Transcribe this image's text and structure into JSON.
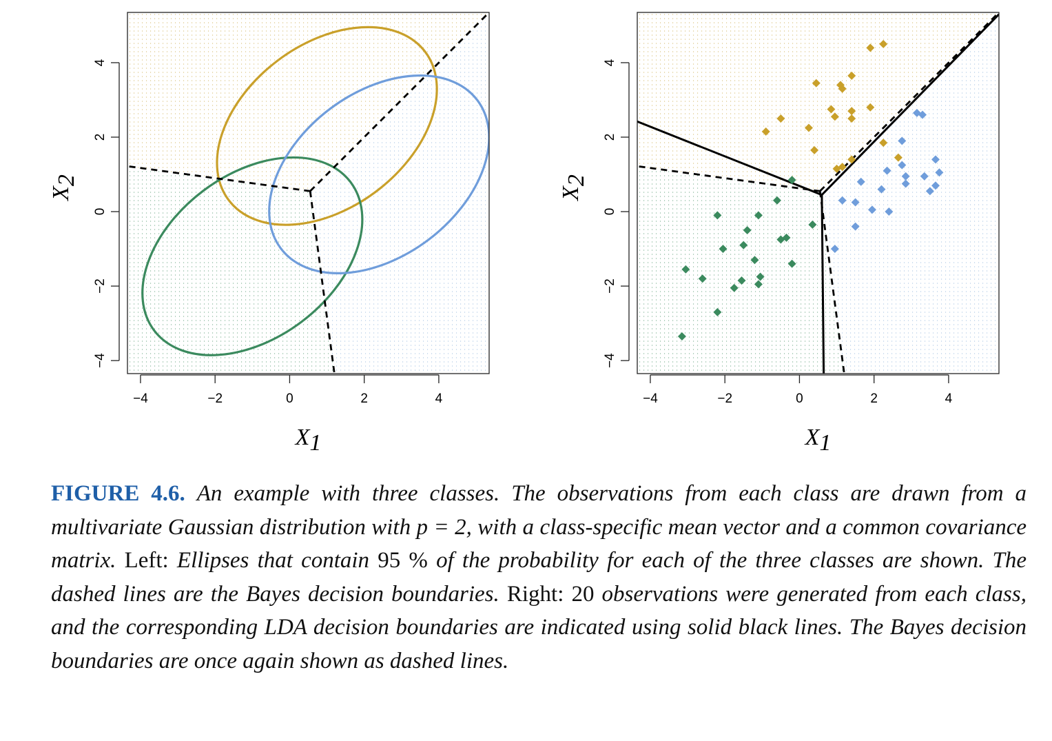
{
  "colors": {
    "class1": "#c9a02a",
    "class2": "#3b8a5e",
    "class3": "#6f9ddb",
    "region1_dots": "#d2b55f",
    "region2_dots": "#63a07d",
    "region3_dots": "#9dbedf",
    "boundary": "#000000"
  },
  "chart_data": [
    {
      "panel": "Left",
      "type": "scatter",
      "xlabel": "X",
      "xlabel_sub": "1",
      "ylabel": "X",
      "ylabel_sub": "2",
      "xlim": [
        -4.35,
        5.35
      ],
      "ylim": [
        -4.35,
        5.35
      ],
      "xticks": [
        -4,
        -2,
        0,
        2,
        4
      ],
      "yticks": [
        -4,
        -2,
        0,
        2,
        4
      ],
      "xtick_labels": [
        "−4",
        "−2",
        "0",
        "2",
        "4"
      ],
      "ytick_labels": [
        "−4",
        "−2",
        "0",
        "2",
        "4"
      ],
      "grid": false,
      "background": "dotted class regions",
      "ellipses": [
        {
          "class": 1,
          "color_key": "class1",
          "center": [
            1.0,
            2.3
          ],
          "radii": [
            3.3,
            2.2
          ],
          "angle_deg": 37
        },
        {
          "class": 2,
          "color_key": "class2",
          "center": [
            -1.0,
            -1.2
          ],
          "radii": [
            3.3,
            2.2
          ],
          "angle_deg": 37
        },
        {
          "class": 3,
          "color_key": "class3",
          "center": [
            2.4,
            1.0
          ],
          "radii": [
            3.3,
            2.2
          ],
          "angle_deg": 37
        }
      ],
      "boundaries": [
        {
          "style": "dashed",
          "points": [
            [
              0.55,
              0.55
            ],
            [
              -4.35,
              1.22
            ]
          ]
        },
        {
          "style": "dashed",
          "points": [
            [
              0.55,
              0.55
            ],
            [
              5.35,
              5.35
            ]
          ]
        },
        {
          "style": "dashed",
          "points": [
            [
              0.55,
              0.55
            ],
            [
              1.2,
              -4.35
            ]
          ]
        }
      ]
    },
    {
      "panel": "Right",
      "type": "scatter",
      "xlabel": "X",
      "xlabel_sub": "1",
      "ylabel": "X",
      "ylabel_sub": "2",
      "xlim": [
        -4.35,
        5.35
      ],
      "ylim": [
        -4.35,
        5.35
      ],
      "xticks": [
        -4,
        -2,
        0,
        2,
        4
      ],
      "yticks": [
        -4,
        -2,
        0,
        2,
        4
      ],
      "xtick_labels": [
        "−4",
        "−2",
        "0",
        "2",
        "4"
      ],
      "ytick_labels": [
        "−4",
        "−2",
        "0",
        "2",
        "4"
      ],
      "grid": false,
      "background": "dotted class regions",
      "boundaries": [
        {
          "style": "dashed",
          "points": [
            [
              0.55,
              0.55
            ],
            [
              -4.35,
              1.22
            ]
          ]
        },
        {
          "style": "dashed",
          "points": [
            [
              0.55,
              0.55
            ],
            [
              5.35,
              5.35
            ]
          ]
        },
        {
          "style": "dashed",
          "points": [
            [
              0.55,
              0.55
            ],
            [
              1.2,
              -4.35
            ]
          ]
        },
        {
          "style": "solid",
          "points": [
            [
              0.6,
              0.45
            ],
            [
              -4.35,
              2.42
            ]
          ]
        },
        {
          "style": "solid",
          "points": [
            [
              0.6,
              0.45
            ],
            [
              5.35,
              5.3
            ]
          ]
        },
        {
          "style": "solid",
          "points": [
            [
              0.6,
              0.45
            ],
            [
              0.65,
              -4.35
            ]
          ]
        }
      ],
      "series": [
        {
          "color_key": "class1",
          "points": [
            [
              1.9,
              4.4
            ],
            [
              2.25,
              4.5
            ],
            [
              0.45,
              3.45
            ],
            [
              1.1,
              3.4
            ],
            [
              1.15,
              3.3
            ],
            [
              1.4,
              3.65
            ],
            [
              0.85,
              2.75
            ],
            [
              1.4,
              2.7
            ],
            [
              1.9,
              2.8
            ],
            [
              0.95,
              2.55
            ],
            [
              1.4,
              2.5
            ],
            [
              -0.5,
              2.5
            ],
            [
              0.25,
              2.25
            ],
            [
              -0.9,
              2.15
            ],
            [
              0.4,
              1.65
            ],
            [
              2.25,
              1.85
            ],
            [
              2.65,
              1.45
            ],
            [
              1.4,
              1.4
            ],
            [
              1.0,
              1.15
            ],
            [
              1.15,
              1.2
            ]
          ]
        },
        {
          "color_key": "class2",
          "points": [
            [
              -0.2,
              0.85
            ],
            [
              -0.6,
              0.3
            ],
            [
              -2.2,
              -0.1
            ],
            [
              -1.1,
              -0.1
            ],
            [
              -1.4,
              -0.5
            ],
            [
              -0.5,
              -0.75
            ],
            [
              -0.35,
              -0.7
            ],
            [
              0.35,
              -0.35
            ],
            [
              -2.05,
              -1.0
            ],
            [
              -1.5,
              -0.9
            ],
            [
              -1.2,
              -1.3
            ],
            [
              -0.2,
              -1.4
            ],
            [
              -3.05,
              -1.55
            ],
            [
              -2.6,
              -1.8
            ],
            [
              -1.05,
              -1.75
            ],
            [
              -1.55,
              -1.85
            ],
            [
              -1.1,
              -1.95
            ],
            [
              -1.75,
              -2.05
            ],
            [
              -2.2,
              -2.7
            ],
            [
              -3.15,
              -3.35
            ]
          ]
        },
        {
          "color_key": "class3",
          "points": [
            [
              3.15,
              2.65
            ],
            [
              3.3,
              2.6
            ],
            [
              2.75,
              1.9
            ],
            [
              2.75,
              1.25
            ],
            [
              3.65,
              1.4
            ],
            [
              2.35,
              1.1
            ],
            [
              3.75,
              1.05
            ],
            [
              2.85,
              0.95
            ],
            [
              3.35,
              0.95
            ],
            [
              1.65,
              0.8
            ],
            [
              2.85,
              0.75
            ],
            [
              2.2,
              0.6
            ],
            [
              3.65,
              0.7
            ],
            [
              3.5,
              0.55
            ],
            [
              1.15,
              0.3
            ],
            [
              1.5,
              0.25
            ],
            [
              1.95,
              0.05
            ],
            [
              2.4,
              0.0
            ],
            [
              1.5,
              -0.4
            ],
            [
              0.95,
              -1.0
            ]
          ]
        }
      ]
    }
  ],
  "caption": {
    "figure_label": "FIGURE 4.6.",
    "text_1": "An example with three classes. The observations from each class are drawn from a multivariate Gaussian distribution with",
    "math_1": "p = 2",
    "text_2": ", with a class-specific mean vector and a common covariance matrix.",
    "left_label": "Left:",
    "text_3": "Ellipses that contain",
    "percent": "95 %",
    "text_4": "of the probability for each of the three classes are shown. The dashed lines are the Bayes decision boundaries.",
    "right_label": "Right:",
    "count": "20",
    "text_5": "observations were generated from each class, and the corresponding LDA decision boundaries are indicated using solid black lines. The Bayes decision boundaries are once again shown as dashed lines."
  }
}
